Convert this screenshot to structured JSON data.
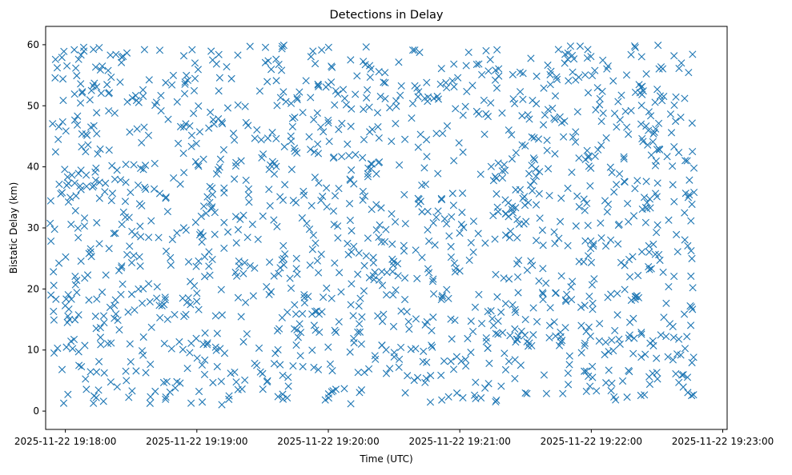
{
  "chart_data": {
    "type": "scatter",
    "title": "Detections in Delay",
    "xlabel": "Time (UTC)",
    "ylabel": "Bistatic Delay (km)",
    "marker": "x",
    "color": "#1f77b4",
    "grid": false,
    "x_range": [
      "2025-11-22 19:17:51",
      "2025-11-22 19:23:02"
    ],
    "ylim": [
      -3,
      63
    ],
    "x_ticks": [
      "2025-11-22 19:18:00",
      "2025-11-22 19:19:00",
      "2025-11-22 19:20:00",
      "2025-11-22 19:21:00",
      "2025-11-22 19:22:00",
      "2025-11-22 19:23:00"
    ],
    "y_ticks": [
      0,
      10,
      20,
      30,
      40,
      50,
      60
    ],
    "data_time_range": [
      "2025-11-22 19:17:53",
      "2025-11-22 19:22:47"
    ],
    "data_delay_range": [
      1,
      60
    ],
    "point_count": 1500
  }
}
